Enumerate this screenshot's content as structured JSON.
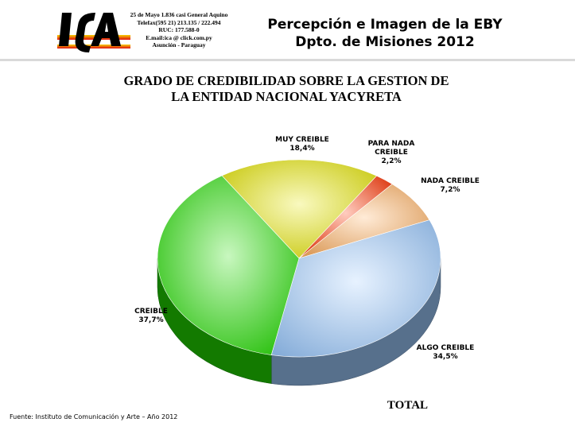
{
  "header": {
    "contact_lines": [
      "25 de Mayo 1.836 casi General Aquino",
      "Telefax(595 21) 213.135 / 222.494",
      "RUC: 177.588-0",
      "E.mail:ica @ click.com.py",
      "Asunción - Paraguay"
    ],
    "title_line1": "Percepción e Imagen de la EBY",
    "title_line2": "Dpto. de Misiones 2012"
  },
  "colors": {
    "muy_creible": "#e6e600",
    "para_nada_creible": "#ff3300",
    "nada_creible": "#ffb060",
    "algo_creible": "#9ecbff",
    "creible": "#22dd00"
  },
  "chart_data": {
    "type": "pie",
    "title_line1": "GRADO DE CREDIBILIDAD SOBRE LA GESTION DE",
    "title_line2": "LA ENTIDAD NACIONAL YACYRETA",
    "slices": [
      {
        "label": "MUY CREIBLE",
        "value": 18.4,
        "value_text": "18,4%"
      },
      {
        "label": "PARA NADA CREIBLE",
        "value": 2.2,
        "value_text": "2,2%"
      },
      {
        "label": "NADA CREIBLE",
        "value": 7.2,
        "value_text": "7,2%"
      },
      {
        "label": "ALGO CREIBLE",
        "value": 34.5,
        "value_text": "34,5%"
      },
      {
        "label": "CREIBLE",
        "value": 37.7,
        "value_text": "37,7%"
      }
    ],
    "footer_label": "TOTAL"
  },
  "source": "Fuente: Instituto de Comunicación y Arte – Año 2012"
}
